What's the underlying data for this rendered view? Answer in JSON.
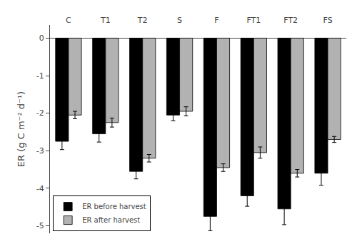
{
  "chart_data": {
    "type": "bar",
    "categories": [
      "C",
      "T1",
      "T2",
      "S",
      "F",
      "FT1",
      "FT2",
      "FS"
    ],
    "series": [
      {
        "name": "ER before harvest",
        "color": "#000000",
        "values": [
          -2.75,
          -2.55,
          -3.55,
          -2.05,
          -4.75,
          -4.2,
          -4.55,
          -3.6
        ],
        "errors": [
          0.22,
          0.22,
          0.2,
          0.15,
          0.38,
          0.28,
          0.42,
          0.32
        ]
      },
      {
        "name": "ER after harvest",
        "color": "#b2b2b2",
        "values": [
          -2.05,
          -2.25,
          -3.2,
          -1.95,
          -3.45,
          -3.05,
          -3.6,
          -2.7
        ],
        "errors": [
          0.1,
          0.12,
          0.1,
          0.12,
          0.1,
          0.15,
          0.1,
          0.08
        ]
      }
    ],
    "ylabel": "ER (g C m⁻² d⁻¹)",
    "ylim": [
      -5.2,
      0.35
    ],
    "yticks": [
      0,
      -1,
      -2,
      -3,
      -4,
      -5
    ],
    "grid": false,
    "legend": "lower left"
  }
}
